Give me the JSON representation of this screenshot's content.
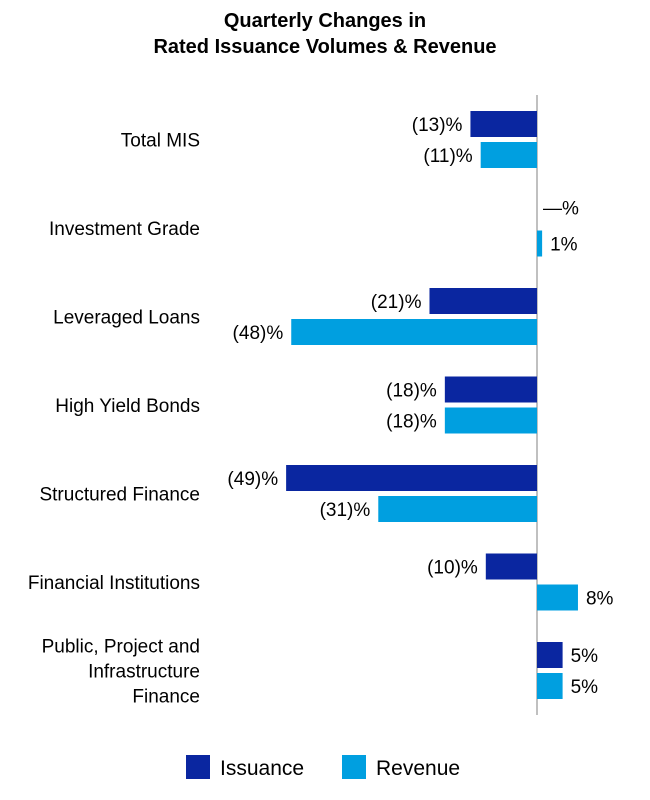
{
  "chart_data": {
    "type": "bar",
    "orientation": "horizontal",
    "title": [
      "Quarterly Changes in",
      "Rated Issuance Volumes & Revenue"
    ],
    "categories": [
      [
        "Total MIS"
      ],
      [
        "Investment Grade"
      ],
      [
        "Leveraged Loans"
      ],
      [
        "High Yield Bonds"
      ],
      [
        "Structured Finance"
      ],
      [
        "Financial Institutions"
      ],
      [
        "Public, Project and",
        "Infrastructure",
        "Finance"
      ]
    ],
    "series": [
      {
        "name": "Issuance",
        "color": "#0A26A0",
        "values": [
          -13,
          0,
          -21,
          -18,
          -49,
          -10,
          5
        ],
        "labels": [
          "(13)%",
          "—%",
          "(21)%",
          "(18)%",
          "(49)%",
          "(10)%",
          "5%"
        ]
      },
      {
        "name": "Revenue",
        "color": "#009FE0",
        "values": [
          -11,
          1,
          -48,
          -18,
          -31,
          8,
          5
        ],
        "labels": [
          "(11)%",
          "1%",
          "(48)%",
          "(18)%",
          "(31)%",
          "8%",
          "5%"
        ]
      }
    ],
    "unit": "%",
    "grid": false,
    "legend_placement": "bottom",
    "axis_color": "#C0C0C0"
  }
}
